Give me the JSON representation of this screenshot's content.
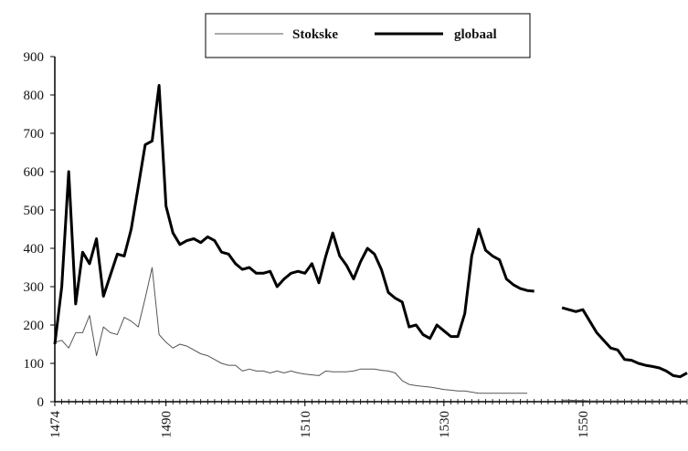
{
  "chart_data": {
    "type": "line",
    "x": [
      1474,
      1475,
      1476,
      1477,
      1478,
      1479,
      1480,
      1481,
      1482,
      1483,
      1484,
      1485,
      1486,
      1487,
      1488,
      1489,
      1490,
      1491,
      1492,
      1493,
      1494,
      1495,
      1496,
      1497,
      1498,
      1499,
      1500,
      1501,
      1502,
      1503,
      1504,
      1505,
      1506,
      1507,
      1508,
      1509,
      1510,
      1511,
      1512,
      1513,
      1514,
      1515,
      1516,
      1517,
      1518,
      1519,
      1520,
      1521,
      1522,
      1523,
      1524,
      1525,
      1526,
      1527,
      1528,
      1529,
      1530,
      1531,
      1532,
      1533,
      1534,
      1535,
      1536,
      1537,
      1538,
      1539,
      1540,
      1541,
      1542,
      1543,
      1544,
      1545,
      1546,
      1547,
      1548,
      1549,
      1550,
      1551,
      1552,
      1553,
      1554,
      1555,
      1556,
      1557,
      1558,
      1559,
      1560,
      1561,
      1562,
      1563,
      1564,
      1565
    ],
    "series": [
      {
        "name": "Stokske",
        "color": "#555555",
        "width": 1,
        "values": [
          155,
          160,
          140,
          180,
          180,
          225,
          120,
          195,
          180,
          175,
          220,
          210,
          195,
          270,
          350,
          175,
          155,
          140,
          150,
          145,
          135,
          125,
          120,
          110,
          100,
          95,
          95,
          80,
          85,
          80,
          80,
          75,
          80,
          75,
          80,
          75,
          72,
          70,
          68,
          80,
          78,
          78,
          78,
          80,
          85,
          85,
          85,
          82,
          80,
          75,
          55,
          45,
          42,
          40,
          38,
          35,
          32,
          30,
          28,
          28,
          25,
          22,
          22,
          22,
          22,
          22,
          22,
          22,
          22,
          null,
          null,
          null,
          null,
          4,
          4,
          3,
          3,
          2,
          2,
          2,
          2,
          2,
          2,
          2,
          2,
          2,
          2,
          2,
          2,
          2,
          2,
          2
        ]
      },
      {
        "name": "globaal",
        "color": "#000000",
        "width": 3,
        "values": [
          150,
          300,
          600,
          255,
          390,
          360,
          425,
          275,
          330,
          385,
          380,
          450,
          560,
          670,
          680,
          825,
          510,
          440,
          410,
          420,
          425,
          415,
          430,
          420,
          390,
          385,
          360,
          345,
          350,
          335,
          335,
          340,
          300,
          320,
          335,
          340,
          335,
          360,
          310,
          380,
          440,
          380,
          355,
          320,
          365,
          400,
          385,
          345,
          285,
          270,
          260,
          195,
          200,
          175,
          165,
          200,
          185,
          170,
          170,
          230,
          380,
          450,
          395,
          380,
          370,
          320,
          305,
          295,
          290,
          288,
          null,
          null,
          null,
          245,
          240,
          235,
          240,
          210,
          180,
          160,
          140,
          135,
          110,
          108,
          100,
          95,
          92,
          88,
          80,
          68,
          65,
          75
        ]
      }
    ],
    "xlim": [
      1474,
      1565
    ],
    "xticks": [
      1474,
      1490,
      1510,
      1530,
      1550
    ],
    "ylim": [
      0,
      900
    ],
    "yticks": [
      0,
      100,
      200,
      300,
      400,
      500,
      600,
      700,
      800,
      900
    ],
    "grid": false,
    "legend": "top"
  }
}
